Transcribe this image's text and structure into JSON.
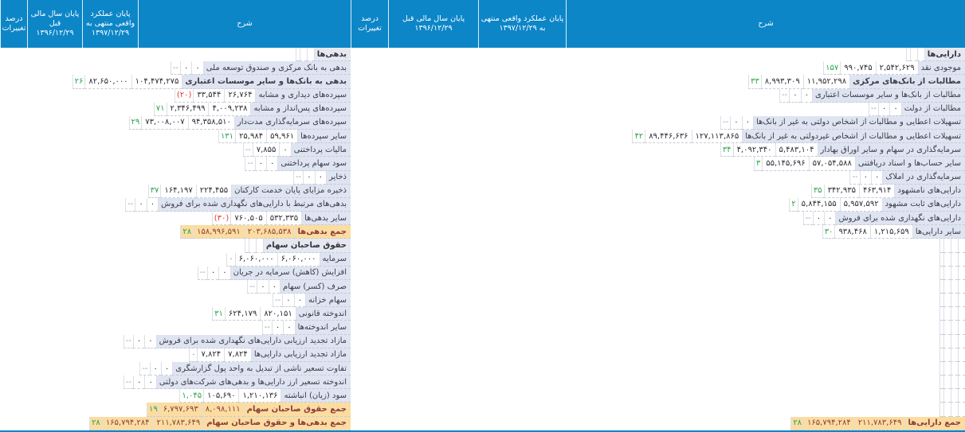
{
  "table": {
    "columns": {
      "pct": "درصد تغییرات",
      "prev": "پایان سال مالی قبل ۱۳۹۶/۱۲/۲۹",
      "cur": "پایان عملکرد واقعی منتهی به ۱۳۹۷/۱۲/۲۹",
      "desc": "شرح"
    },
    "assets": {
      "rows": [
        {
          "type": "section",
          "label": "دارایی‌ها"
        },
        {
          "label": "موجودی نقد",
          "pct": "۱۵۷",
          "prev": "۹۹۰,۷۴۵",
          "cur": "۲,۵۴۲,۶۲۹"
        },
        {
          "label": "مطالبات از بانک‌های مرکزی",
          "bold": true,
          "pct": "۳۳",
          "prev": "۸,۹۹۳,۳۰۹",
          "cur": "۱۱,۹۵۲,۲۹۸"
        },
        {
          "label": "مطالبات از بانک‌ها و سایر موسسات اعتباری",
          "pct": "--",
          "prev": "۰",
          "cur": "۰"
        },
        {
          "label": "مطالبات از دولت",
          "pct": "--",
          "prev": "۰",
          "cur": "۰"
        },
        {
          "label": "تسهیلات اعطایی و مطالبات از اشخاص دولتی به غیر از بانک‌ها",
          "pct": "--",
          "prev": "۰",
          "cur": "۰"
        },
        {
          "label": "تسهیلات اعطایی و مطالبات از اشخاص غیردولتی به غیر از بانک‌ها",
          "pct": "۴۲",
          "prev": "۸۹,۴۴۶,۶۳۶",
          "cur": "۱۲۷,۱۱۳,۸۶۵"
        },
        {
          "label": "سرمایه‌گذاری در سهام و سایر اوراق بهادار",
          "pct": "۳۴",
          "prev": "۴,۰۹۲,۳۴۰",
          "cur": "۵,۴۸۳,۱۰۴"
        },
        {
          "label": "سایر حساب‌ها و اسناد دریافتنی",
          "pct": "۳",
          "prev": "۵۵,۱۴۵,۶۹۶",
          "cur": "۵۷,۰۵۴,۵۸۸"
        },
        {
          "label": "سرمایه‌گذاری در املاک",
          "pct": "--",
          "prev": "۰",
          "cur": "۰"
        },
        {
          "label": "دارایی‌های نامشهود",
          "pct": "۳۵",
          "prev": "۳۴۲,۹۳۵",
          "cur": "۴۶۳,۹۱۴"
        },
        {
          "label": "دارایی‌های ثابت مشهود",
          "pct": "۲",
          "prev": "۵,۸۴۴,۱۵۵",
          "cur": "۵,۹۵۷,۵۹۲"
        },
        {
          "label": "دارایی‌های نگهداری شده برای فروش",
          "pct": "--",
          "prev": "۰",
          "cur": "۰"
        },
        {
          "label": "سایر دارایی‌ها",
          "pct": "۳۰",
          "prev": "۹۳۸,۴۶۸",
          "cur": "۱,۲۱۵,۶۵۹"
        },
        {
          "type": "empty"
        },
        {
          "type": "empty"
        },
        {
          "type": "empty"
        },
        {
          "type": "empty"
        },
        {
          "type": "empty"
        },
        {
          "type": "empty"
        },
        {
          "type": "empty"
        },
        {
          "type": "empty"
        },
        {
          "type": "empty"
        },
        {
          "type": "empty"
        },
        {
          "type": "empty"
        },
        {
          "type": "empty"
        },
        {
          "type": "empty"
        },
        {
          "type": "total",
          "label": "جمع دارایی‌ها",
          "pct": "۲۸",
          "prev": "۱۶۵,۷۹۴,۲۸۴",
          "cur": "۲۱۱,۷۸۳,۶۴۹"
        }
      ]
    },
    "liabilities_equity": {
      "rows": [
        {
          "type": "section",
          "label": "بدهی‌ها"
        },
        {
          "label": "بدهی به بانک مرکزی و صندوق توسعه ملی",
          "pct": "--",
          "prev": "۰",
          "cur": "۰"
        },
        {
          "label": "بدهی به بانک‌ها و سایر موسسات اعتباری",
          "bold": true,
          "pct": "۲۶",
          "prev": "۸۲,۶۵۰,۰۰۰",
          "cur": "۱۰۴,۴۷۴,۲۷۵"
        },
        {
          "label": "سپرده‌های دیداری و مشابه",
          "pct": "(۲۰)",
          "prev": "۳۳,۵۴۴",
          "cur": "۲۶,۷۶۴"
        },
        {
          "label": "سپرده‌های پس‌انداز و مشابه",
          "pct": "۷۱",
          "prev": "۲,۳۴۶,۴۹۹",
          "cur": "۴,۰۰۹,۲۳۸"
        },
        {
          "label": "سپرده‌های سرمایه‌گذاری مدت‌دار",
          "pct": "۲۹",
          "prev": "۷۳,۰۰۸,۰۰۷",
          "cur": "۹۴,۳۵۸,۵۱۰"
        },
        {
          "label": "سایر سپرده‌ها",
          "pct": "۱۳۱",
          "prev": "۲۵,۹۸۴",
          "cur": "۵۹,۹۶۱"
        },
        {
          "label": "مالیات پرداختنی",
          "pct": "--",
          "prev": "۷,۸۵۵",
          "cur": "۰"
        },
        {
          "label": "سود سهام پرداختنی",
          "pct": "--",
          "prev": "۰",
          "cur": "۰"
        },
        {
          "label": "ذخایر",
          "pct": "--",
          "prev": "۰",
          "cur": "۰"
        },
        {
          "label": "ذخیره مزایای پایان خدمت کارکنان",
          "pct": "۳۷",
          "prev": "۱۶۴,۱۹۷",
          "cur": "۲۲۴,۴۵۵"
        },
        {
          "label": "بدهی‌های مرتبط با دارایی‌های نگهداری شده برای فروش",
          "pct": "--",
          "prev": "۰",
          "cur": "۰"
        },
        {
          "label": "سایر بدهی‌ها",
          "pct": "(۳۰)",
          "prev": "۷۶۰,۵۰۵",
          "cur": "۵۳۲,۳۳۵"
        },
        {
          "type": "total",
          "label": "جمع بدهی‌ها",
          "pct": "۲۸",
          "prev": "۱۵۸,۹۹۶,۵۹۱",
          "cur": "۲۰۳,۶۸۵,۵۳۸"
        },
        {
          "type": "section",
          "label": "حقوق صاحبان سهام"
        },
        {
          "label": "سرمایه",
          "pct": "۰",
          "prev": "۶,۰۶۰,۰۰۰",
          "cur": "۶,۰۶۰,۰۰۰"
        },
        {
          "label": "افزایش (کاهش) سرمایه در جریان",
          "pct": "--",
          "prev": "۰",
          "cur": "۰"
        },
        {
          "label": "صرف (کسر) سهام",
          "pct": "--",
          "prev": "۰",
          "cur": "۰"
        },
        {
          "label": "سهام خزانه",
          "pct": "--",
          "prev": "۰",
          "cur": "۰"
        },
        {
          "label": "اندوخته قانونی",
          "pct": "۳۱",
          "prev": "۶۲۴,۱۷۹",
          "cur": "۸۲۰,۱۵۱"
        },
        {
          "label": "سایر اندوخته‌ها",
          "pct": "--",
          "prev": "۰",
          "cur": "۰"
        },
        {
          "label": "مازاد تجدید ارزیابی دارایی‌های نگهداری شده برای فروش",
          "pct": "--",
          "prev": "۰",
          "cur": "۰"
        },
        {
          "label": "مازاد تجدید ارزیابی دارایی‌ها",
          "pct": "۰",
          "prev": "۷,۸۲۴",
          "cur": "۷,۸۲۴"
        },
        {
          "label": "تفاوت تسعیر ناشی از تبدیل به واحد پول گزارشگری",
          "pct": "--",
          "prev": "۰",
          "cur": "۰"
        },
        {
          "label": "اندوخته تسعیر ارز دارایی‌ها و بدهی‌های شرکت‌های دولتی",
          "pct": "--",
          "prev": "۰",
          "cur": "۰"
        },
        {
          "label": "سود (زیان) انباشته",
          "pct": "۱,۰۴۵",
          "prev": "۱۰۵,۶۹۰",
          "cur": "۱,۲۱۰,۱۳۶"
        },
        {
          "type": "total",
          "label": "جمع حقوق صاحبان سهام",
          "pct": "۱۹",
          "prev": "۶,۷۹۷,۶۹۳",
          "cur": "۸,۰۹۸,۱۱۱"
        },
        {
          "type": "total",
          "label": "جمع بدهی‌ها و حقوق صاحبان سهام",
          "pct": "۲۸",
          "prev": "۱۶۵,۷۹۴,۲۸۴",
          "cur": "۲۱۱,۷۸۳,۶۴۹"
        }
      ]
    }
  },
  "colors": {
    "header_bg": "#0d86c8",
    "desc_column_bg": "#dfe4f2",
    "section_row_bg": "#e5e8f0",
    "total_row_bg": "#fbdda2",
    "total_text": "#8c3b38",
    "positive_pct": "#2aa44a",
    "negative_pct": "#e0372f",
    "dash_pct": "#9aa1ac"
  }
}
